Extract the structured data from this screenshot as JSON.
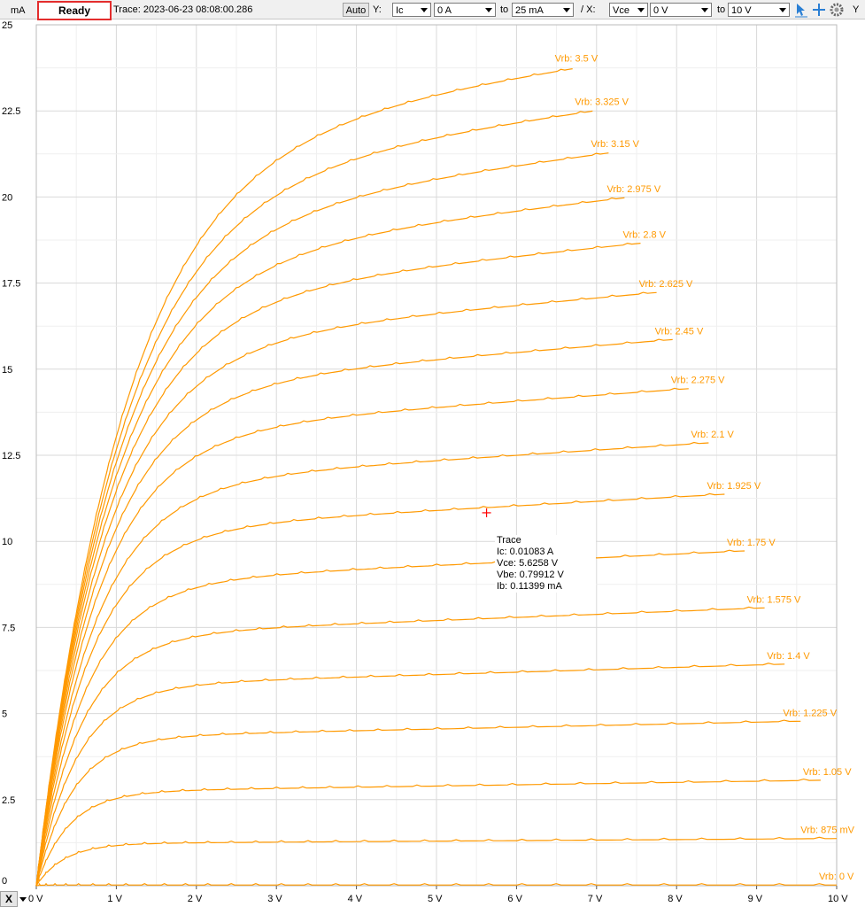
{
  "toolbar": {
    "status": "Ready",
    "trace_label": "Trace: 2023-06-23 08:08:00.286",
    "auto_button": "Auto",
    "y_label": "Y:",
    "y_quantity": "Ic",
    "y_from": "0 A",
    "to_label_1": "to",
    "y_to": "25 mA",
    "x_label": "/ X:",
    "x_quantity": "Vce",
    "x_from": "0 V",
    "to_label_2": "to",
    "x_to": "10 V",
    "y_axis_button": "Y",
    "x_axis_button": "X",
    "icons": [
      "select-pointer-icon",
      "crosshair-icon",
      "settings-gear-icon"
    ]
  },
  "tooltip": {
    "title": "Trace",
    "ic": "Ic: 0.01083 A",
    "vce": "Vce: 5.6258 V",
    "vbe": "Vbe: 0.79912 V",
    "ib": "Ib: 0.11399 mA"
  },
  "colors": {
    "trace": "#ff9900",
    "cursor": "#ff0000",
    "grid": "#d9d9d9"
  },
  "chart_data": {
    "type": "line",
    "title": "",
    "xlabel": "",
    "ylabel": "mA",
    "xlim": [
      0,
      10
    ],
    "ylim": [
      0,
      25
    ],
    "x_ticks": [
      "0 V",
      "1 V",
      "2 V",
      "3 V",
      "4 V",
      "5 V",
      "6 V",
      "7 V",
      "8 V",
      "9 V",
      "10 V"
    ],
    "y_ticks": [
      "0",
      "2.5",
      "5",
      "7.5",
      "10",
      "12.5",
      "15",
      "17.5",
      "20",
      "22.5",
      "25"
    ],
    "grid": true,
    "cursor": {
      "x": 5.6258,
      "y": 10.83
    },
    "series": [
      {
        "name": "Vrb: 0 V",
        "knee": 0.05,
        "sat": 0.02,
        "slope": 0.0,
        "xmax": 10.0
      },
      {
        "name": "Vrb: 875 mV",
        "knee": 0.35,
        "sat": 1.22,
        "slope": 0.015,
        "xmax": 10.0
      },
      {
        "name": "Vrb: 1.05 V",
        "knee": 0.4,
        "sat": 2.72,
        "slope": 0.035,
        "xmax": 9.8
      },
      {
        "name": "Vrb: 1.225 V",
        "knee": 0.45,
        "sat": 4.3,
        "slope": 0.05,
        "xmax": 9.55
      },
      {
        "name": "Vrb: 1.4 V",
        "knee": 0.5,
        "sat": 5.78,
        "slope": 0.07,
        "xmax": 9.35
      },
      {
        "name": "Vrb: 1.575 V",
        "knee": 0.55,
        "sat": 7.25,
        "slope": 0.09,
        "xmax": 9.1
      },
      {
        "name": "Vrb: 1.75 V",
        "knee": 0.6,
        "sat": 8.75,
        "slope": 0.11,
        "xmax": 8.85
      },
      {
        "name": "Vrb: 1.925 V",
        "knee": 0.65,
        "sat": 10.25,
        "slope": 0.13,
        "xmax": 8.6
      },
      {
        "name": "Vrb: 2.1 V",
        "knee": 0.7,
        "sat": 11.6,
        "slope": 0.15,
        "xmax": 8.4
      },
      {
        "name": "Vrb: 2.275 V",
        "knee": 0.75,
        "sat": 13.05,
        "slope": 0.17,
        "xmax": 8.15
      },
      {
        "name": "Vrb: 2.45 V",
        "knee": 0.8,
        "sat": 14.35,
        "slope": 0.19,
        "xmax": 7.95
      },
      {
        "name": "Vrb: 2.625 V",
        "knee": 0.85,
        "sat": 15.6,
        "slope": 0.21,
        "xmax": 7.75
      },
      {
        "name": "Vrb: 2.8 V",
        "knee": 0.9,
        "sat": 16.85,
        "slope": 0.24,
        "xmax": 7.55
      },
      {
        "name": "Vrb: 2.975 V",
        "knee": 0.95,
        "sat": 18.0,
        "slope": 0.27,
        "xmax": 7.35
      },
      {
        "name": "Vrb: 3.15 V",
        "knee": 1.0,
        "sat": 19.15,
        "slope": 0.3,
        "xmax": 7.15
      },
      {
        "name": "Vrb: 3.325 V",
        "knee": 1.05,
        "sat": 20.3,
        "slope": 0.32,
        "xmax": 6.95
      },
      {
        "name": "Vrb: 3.5 V",
        "knee": 1.1,
        "sat": 21.5,
        "slope": 0.34,
        "xmax": 6.7
      }
    ]
  }
}
